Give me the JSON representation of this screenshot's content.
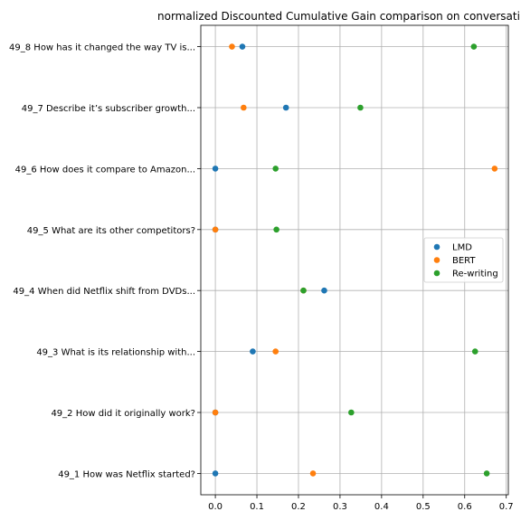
{
  "chart_data": {
    "type": "scatter",
    "title": "normalized Discounted Cumulative Gain comparison on conversati",
    "xlabel": "",
    "ylabel": "",
    "xlim": [
      -0.035,
      0.705
    ],
    "xticks": [
      0.0,
      0.1,
      0.2,
      0.3,
      0.4,
      0.5,
      0.6,
      0.7
    ],
    "xtick_labels": [
      "0.0",
      "0.1",
      "0.2",
      "0.3",
      "0.4",
      "0.5",
      "0.6",
      "0.7"
    ],
    "categories": [
      "49_1 How was Netflix started?",
      "49_2 How did it originally work?",
      "49_3 What is its relationship with...",
      "49_4 When did Netflix shift from DVDs...",
      "49_5 What are its other competitors?",
      "49_6 How does it compare to Amazon...",
      "49_7 Describe it’s subscriber growth...",
      "49_8 How has it changed the way TV is..."
    ],
    "grid": true,
    "legend_position": "center-right",
    "series": [
      {
        "name": "LMD",
        "color": "#1f77b4",
        "values": [
          0.0,
          0.0,
          0.09,
          0.262,
          0.0,
          0.0,
          0.17,
          0.065
        ]
      },
      {
        "name": "BERT",
        "color": "#ff7f0e",
        "values": [
          0.235,
          0.0,
          0.145,
          0.212,
          0.0,
          0.672,
          0.068,
          0.04
        ]
      },
      {
        "name": "Re-writing",
        "color": "#2ca02c",
        "values": [
          0.653,
          0.327,
          0.625,
          0.212,
          0.147,
          0.145,
          0.349,
          0.622
        ]
      }
    ]
  }
}
